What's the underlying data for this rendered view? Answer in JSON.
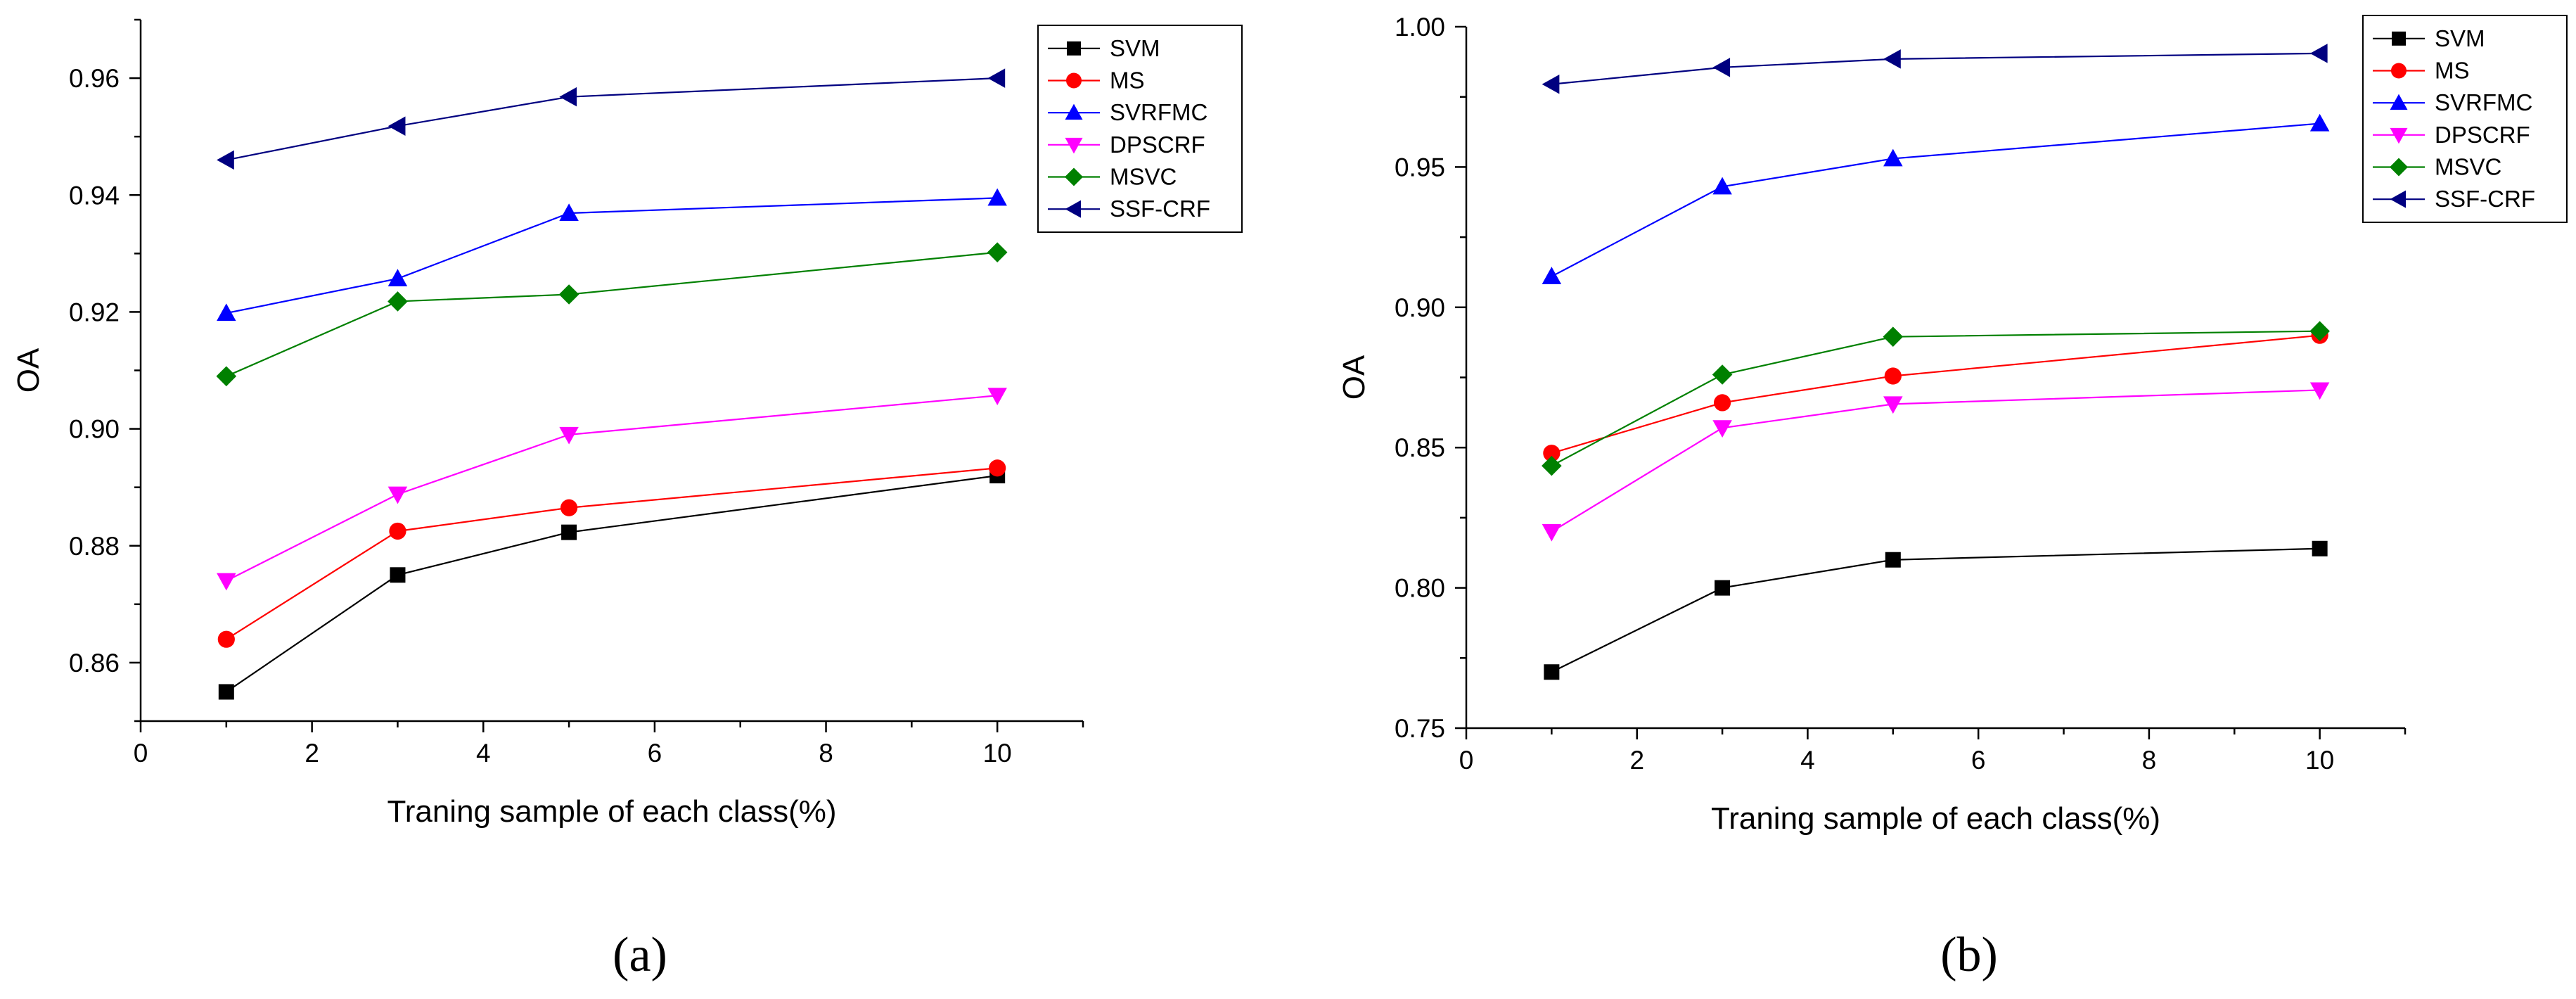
{
  "chart_data": [
    {
      "panel": "(a)",
      "type": "line",
      "title": "",
      "xlabel": "Traning sample of each class(%)",
      "ylabel": "OA",
      "xlim": [
        0,
        11
      ],
      "ylim": [
        0.85,
        0.97
      ],
      "xticks": [
        0,
        2,
        4,
        6,
        8,
        10
      ],
      "yticks": [
        0.86,
        0.88,
        0.9,
        0.92,
        0.94,
        0.96
      ],
      "xtick_labels": [
        "0",
        "2",
        "4",
        "6",
        "8",
        "10"
      ],
      "ytick_labels": [
        "0.86",
        "0.88",
        "0.90",
        "0.92",
        "0.94",
        "0.96"
      ],
      "legend_position": "top-right",
      "x": [
        1,
        3,
        5,
        10
      ],
      "series": [
        {
          "name": "SVM",
          "marker": "square",
          "color": "#000000",
          "values": [
            0.855,
            0.875,
            0.8823,
            0.892
          ]
        },
        {
          "name": "MS",
          "marker": "circle",
          "color": "#ff0000",
          "values": [
            0.864,
            0.8825,
            0.8865,
            0.8933
          ]
        },
        {
          "name": "SVRFMC",
          "marker": "triangle-up",
          "color": "#0000ff",
          "values": [
            0.9198,
            0.9257,
            0.9369,
            0.9395
          ]
        },
        {
          "name": "DPSCRF",
          "marker": "triangle-down",
          "color": "#ff00ff",
          "values": [
            0.874,
            0.8888,
            0.899,
            0.9057
          ]
        },
        {
          "name": "MSVC",
          "marker": "diamond",
          "color": "#008000",
          "values": [
            0.909,
            0.9218,
            0.923,
            0.9302
          ]
        },
        {
          "name": "SSF-CRF",
          "marker": "triangle-left",
          "color": "#000080",
          "values": [
            0.946,
            0.9518,
            0.9568,
            0.96
          ]
        }
      ]
    },
    {
      "panel": "(b)",
      "type": "line",
      "title": "",
      "xlabel": "Traning sample of each class(%)",
      "ylabel": "OA",
      "xlim": [
        0,
        11
      ],
      "ylim": [
        0.75,
        1.0
      ],
      "xticks": [
        0,
        2,
        4,
        6,
        8,
        10
      ],
      "yticks": [
        0.75,
        0.8,
        0.85,
        0.9,
        0.95,
        1.0
      ],
      "xtick_labels": [
        "0",
        "2",
        "4",
        "6",
        "8",
        "10"
      ],
      "ytick_labels": [
        "0.75",
        "0.80",
        "0.85",
        "0.90",
        "0.95",
        "1.00"
      ],
      "legend_position": "top-right",
      "x": [
        1,
        3,
        5,
        10
      ],
      "series": [
        {
          "name": "SVM",
          "marker": "square",
          "color": "#000000",
          "values": [
            0.77,
            0.8,
            0.81,
            0.814
          ]
        },
        {
          "name": "MS",
          "marker": "circle",
          "color": "#ff0000",
          "values": [
            0.848,
            0.866,
            0.8755,
            0.89
          ]
        },
        {
          "name": "SVRFMC",
          "marker": "triangle-up",
          "color": "#0000ff",
          "values": [
            0.911,
            0.943,
            0.953,
            0.9655
          ]
        },
        {
          "name": "DPSCRF",
          "marker": "triangle-down",
          "color": "#ff00ff",
          "values": [
            0.82,
            0.857,
            0.8655,
            0.8705
          ]
        },
        {
          "name": "MSVC",
          "marker": "diamond",
          "color": "#008000",
          "values": [
            0.8435,
            0.876,
            0.8895,
            0.8915
          ]
        },
        {
          "name": "SSF-CRF",
          "marker": "triangle-left",
          "color": "#000080",
          "values": [
            0.9795,
            0.9855,
            0.9885,
            0.9905
          ]
        }
      ]
    }
  ]
}
